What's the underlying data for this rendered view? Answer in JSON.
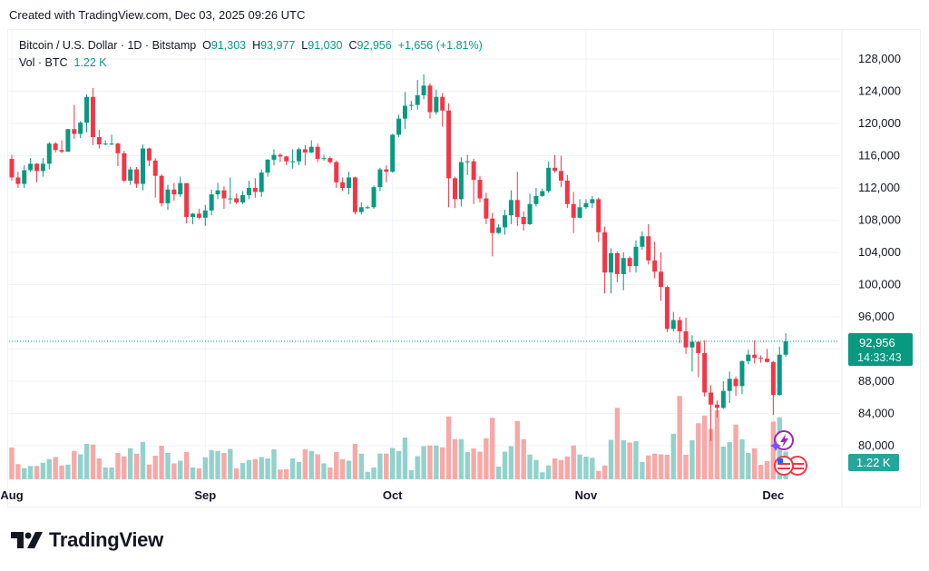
{
  "credit": "Created with TradingView.com, Dec 03, 2025 09:26 UTC",
  "legend": {
    "symbol": "Bitcoin / U.S. Dollar · 1D · Bitstamp",
    "o_label": "O",
    "o": "91,303",
    "h_label": "H",
    "h": "93,977",
    "l_label": "L",
    "l": "91,030",
    "c_label": "C",
    "c": "92,956",
    "change": "+1,656 (+1.81%)",
    "vol_label": "Vol · BTC",
    "vol": "1.22 K"
  },
  "price_badge": {
    "price": "92,956",
    "countdown": "14:33:43"
  },
  "volume_badge": "1.22 K",
  "logo_text": "TradingView",
  "colors": {
    "up": "#089981",
    "down": "#f23645",
    "vol_up": "#92d2cc",
    "vol_down": "#f7a9a7",
    "grid": "#f0f3fa",
    "badge_vol": "#26a69a"
  },
  "event_icons": [
    "lightning-event-icon",
    "us-flag-event-icon",
    "us-flag-event-icon"
  ],
  "chart_data": {
    "type": "candlestick",
    "title": "Bitcoin / U.S. Dollar · 1D · Bitstamp",
    "ylim": [
      78000,
      130000
    ],
    "y_ticks": [
      80000,
      84000,
      88000,
      92000,
      96000,
      100000,
      104000,
      108000,
      112000,
      116000,
      120000,
      124000,
      128000
    ],
    "y_tick_labels": [
      "80,000",
      "84,000",
      "88,000",
      "",
      "96,000",
      "100,000",
      "104,000",
      "108,000",
      "112,000",
      "116,000",
      "120,000",
      "124,000",
      "128,000"
    ],
    "x_ticks": [
      {
        "label": "Aug",
        "date": "2025-08-01"
      },
      {
        "label": "Sep",
        "date": "2025-09-01"
      },
      {
        "label": "Oct",
        "date": "2025-10-01"
      },
      {
        "label": "Nov",
        "date": "2025-11-01"
      },
      {
        "label": "Dec",
        "date": "2025-12-01"
      }
    ],
    "last_price": 92956,
    "grid": true,
    "columns": [
      "date",
      "open",
      "high",
      "low",
      "close",
      "volume_btc"
    ],
    "candles": [
      [
        "2025-08-01",
        115600,
        116100,
        112900,
        113300,
        1400
      ],
      [
        "2025-08-02",
        113300,
        114000,
        112000,
        112500,
        670
      ],
      [
        "2025-08-03",
        112500,
        114800,
        112000,
        114200,
        490
      ],
      [
        "2025-08-04",
        114200,
        115700,
        114000,
        115000,
        590
      ],
      [
        "2025-08-05",
        115000,
        115100,
        112700,
        114100,
        590
      ],
      [
        "2025-08-06",
        114100,
        115700,
        113400,
        115000,
        730
      ],
      [
        "2025-08-07",
        115000,
        117700,
        114300,
        117500,
        890
      ],
      [
        "2025-08-08",
        117500,
        117700,
        116400,
        116700,
        980
      ],
      [
        "2025-08-09",
        116700,
        117900,
        116300,
        116500,
        610
      ],
      [
        "2025-08-10",
        116500,
        119300,
        116500,
        119300,
        650
      ],
      [
        "2025-08-11",
        119300,
        122300,
        118100,
        118700,
        1250
      ],
      [
        "2025-08-12",
        118700,
        120300,
        118200,
        120100,
        1100
      ],
      [
        "2025-08-13",
        120100,
        123600,
        118900,
        123300,
        1560
      ],
      [
        "2025-08-14",
        123300,
        124400,
        117300,
        118300,
        1530
      ],
      [
        "2025-08-15",
        118300,
        119200,
        116900,
        117400,
        920
      ],
      [
        "2025-08-16",
        117400,
        117900,
        117300,
        117500,
        520
      ],
      [
        "2025-08-17",
        117500,
        118600,
        117300,
        117500,
        520
      ],
      [
        "2025-08-18",
        117500,
        117600,
        114700,
        116300,
        1160
      ],
      [
        "2025-08-19",
        116300,
        116600,
        112700,
        112900,
        1010
      ],
      [
        "2025-08-20",
        112900,
        114600,
        112400,
        114300,
        1370
      ],
      [
        "2025-08-21",
        114300,
        114600,
        112000,
        112500,
        1130
      ],
      [
        "2025-08-22",
        112500,
        117400,
        111700,
        116900,
        1650
      ],
      [
        "2025-08-23",
        116900,
        117000,
        114700,
        115400,
        650
      ],
      [
        "2025-08-24",
        115400,
        115700,
        110800,
        113500,
        1040
      ],
      [
        "2025-08-25",
        113500,
        113700,
        109700,
        110100,
        1480
      ],
      [
        "2025-08-26",
        110100,
        112400,
        109300,
        111800,
        1160
      ],
      [
        "2025-08-27",
        111800,
        112600,
        110400,
        111200,
        700
      ],
      [
        "2025-08-28",
        111200,
        113400,
        110900,
        112600,
        820
      ],
      [
        "2025-08-29",
        112600,
        112600,
        107600,
        108400,
        1200
      ],
      [
        "2025-08-30",
        108400,
        108900,
        107500,
        108800,
        520
      ],
      [
        "2025-08-31",
        108800,
        109400,
        108100,
        108300,
        490
      ],
      [
        "2025-09-01",
        108300,
        109900,
        107300,
        109200,
        970
      ],
      [
        "2025-09-02",
        109200,
        111800,
        108600,
        111200,
        1290
      ],
      [
        "2025-09-03",
        111200,
        112600,
        110600,
        111700,
        1250
      ],
      [
        "2025-09-04",
        111700,
        112200,
        109400,
        110700,
        1160
      ],
      [
        "2025-09-05",
        110700,
        113300,
        110000,
        110700,
        1340
      ],
      [
        "2025-09-06",
        110700,
        111300,
        110000,
        110200,
        490
      ],
      [
        "2025-09-07",
        110200,
        111600,
        110000,
        111100,
        720
      ],
      [
        "2025-09-08",
        111100,
        112900,
        110600,
        112000,
        850
      ],
      [
        "2025-09-09",
        112000,
        113200,
        110800,
        111500,
        890
      ],
      [
        "2025-09-10",
        111500,
        114300,
        110900,
        113900,
        980
      ],
      [
        "2025-09-11",
        113900,
        115600,
        113400,
        115500,
        920
      ],
      [
        "2025-09-12",
        115500,
        116800,
        114800,
        116100,
        1320
      ],
      [
        "2025-09-13",
        116100,
        116300,
        115200,
        115900,
        430
      ],
      [
        "2025-09-14",
        115900,
        116000,
        114800,
        115300,
        450
      ],
      [
        "2025-09-15",
        115300,
        116800,
        114400,
        115300,
        920
      ],
      [
        "2025-09-16",
        115300,
        117000,
        114800,
        116800,
        760
      ],
      [
        "2025-09-17",
        116800,
        117300,
        114800,
        116400,
        1320
      ],
      [
        "2025-09-18",
        116400,
        117900,
        116300,
        117100,
        1250
      ],
      [
        "2025-09-19",
        117100,
        117500,
        115200,
        115600,
        1100
      ],
      [
        "2025-09-20",
        115600,
        116100,
        115400,
        115700,
        700
      ],
      [
        "2025-09-21",
        115700,
        115900,
        115000,
        115200,
        520
      ],
      [
        "2025-09-22",
        115200,
        115400,
        112000,
        112700,
        1200
      ],
      [
        "2025-09-23",
        112700,
        113300,
        111600,
        112000,
        890
      ],
      [
        "2025-09-24",
        112000,
        114000,
        111200,
        113300,
        820
      ],
      [
        "2025-09-25",
        113300,
        113400,
        108700,
        109000,
        1560
      ],
      [
        "2025-09-26",
        109000,
        110200,
        108700,
        109600,
        1130
      ],
      [
        "2025-09-27",
        109600,
        109800,
        109400,
        109600,
        330
      ],
      [
        "2025-09-28",
        109600,
        112300,
        109400,
        112100,
        520
      ],
      [
        "2025-09-29",
        112100,
        114500,
        111600,
        114300,
        1130
      ],
      [
        "2025-09-30",
        114300,
        114800,
        112700,
        114000,
        1130
      ],
      [
        "2025-10-01",
        114000,
        118700,
        113900,
        118600,
        1380
      ],
      [
        "2025-10-02",
        118600,
        121100,
        118300,
        120600,
        1250
      ],
      [
        "2025-10-03",
        120600,
        123900,
        119300,
        122200,
        1840
      ],
      [
        "2025-10-04",
        122200,
        122800,
        121700,
        122300,
        400
      ],
      [
        "2025-10-05",
        122300,
        125400,
        121700,
        123500,
        1020
      ],
      [
        "2025-10-06",
        123500,
        126100,
        123000,
        124700,
        1460
      ],
      [
        "2025-10-07",
        124700,
        125000,
        120600,
        121400,
        1490
      ],
      [
        "2025-10-08",
        121400,
        124200,
        121100,
        123300,
        1490
      ],
      [
        "2025-10-09",
        123300,
        123800,
        119600,
        121600,
        1410
      ],
      [
        "2025-10-10",
        121600,
        122500,
        109600,
        113200,
        2770
      ],
      [
        "2025-10-11",
        113200,
        113400,
        109500,
        110600,
        1770
      ],
      [
        "2025-10-12",
        110600,
        115800,
        109700,
        115200,
        1770
      ],
      [
        "2025-10-13",
        115200,
        116100,
        113600,
        115300,
        1200
      ],
      [
        "2025-10-14",
        115300,
        115600,
        110000,
        113000,
        1360
      ],
      [
        "2025-10-15",
        113000,
        113500,
        110200,
        110700,
        1220
      ],
      [
        "2025-10-16",
        110700,
        111400,
        107500,
        108200,
        1810
      ],
      [
        "2025-10-17",
        108200,
        108900,
        103500,
        106400,
        2710
      ],
      [
        "2025-10-18",
        106400,
        107500,
        106300,
        107100,
        560
      ],
      [
        "2025-10-19",
        107100,
        109300,
        106200,
        108600,
        1220
      ],
      [
        "2025-10-20",
        108600,
        111700,
        107500,
        110500,
        1460
      ],
      [
        "2025-10-21",
        110500,
        114000,
        107300,
        108400,
        2570
      ],
      [
        "2025-10-22",
        108400,
        109100,
        106700,
        107500,
        1770
      ],
      [
        "2025-10-23",
        107500,
        111300,
        107400,
        110000,
        1090
      ],
      [
        "2025-10-24",
        110000,
        112000,
        109700,
        111000,
        850
      ],
      [
        "2025-10-25",
        111000,
        111900,
        110900,
        111600,
        310
      ],
      [
        "2025-10-26",
        111600,
        115300,
        111400,
        114500,
        610
      ],
      [
        "2025-10-27",
        114500,
        116100,
        113900,
        114100,
        920
      ],
      [
        "2025-10-28",
        114100,
        116000,
        112100,
        112900,
        850
      ],
      [
        "2025-10-29",
        112900,
        113600,
        109500,
        110000,
        1010
      ],
      [
        "2025-10-30",
        110000,
        111500,
        106400,
        108300,
        1490
      ],
      [
        "2025-10-31",
        108300,
        110600,
        108200,
        109600,
        1090
      ],
      [
        "2025-11-01",
        109600,
        110600,
        109400,
        110100,
        1000
      ],
      [
        "2025-11-02",
        110100,
        111000,
        109500,
        110600,
        950
      ],
      [
        "2025-11-03",
        110600,
        110800,
        105300,
        106500,
        370
      ],
      [
        "2025-11-04",
        106500,
        107200,
        98900,
        101500,
        610
      ],
      [
        "2025-11-05",
        101500,
        104500,
        98900,
        103900,
        1740
      ],
      [
        "2025-11-06",
        103900,
        104100,
        100300,
        101300,
        3150
      ],
      [
        "2025-11-07",
        101300,
        104000,
        99300,
        103300,
        1720
      ],
      [
        "2025-11-08",
        103300,
        103500,
        101500,
        102300,
        1620
      ],
      [
        "2025-11-09",
        102300,
        105500,
        101500,
        104700,
        1680
      ],
      [
        "2025-11-10",
        104700,
        106600,
        104300,
        106000,
        760
      ],
      [
        "2025-11-11",
        106000,
        107500,
        102500,
        103000,
        1050
      ],
      [
        "2025-11-12",
        103000,
        105300,
        100800,
        101600,
        1130
      ],
      [
        "2025-11-13",
        101600,
        104000,
        98000,
        99700,
        1100
      ],
      [
        "2025-11-14",
        99700,
        99900,
        94100,
        94500,
        1080
      ],
      [
        "2025-11-15",
        94500,
        96600,
        94200,
        95600,
        2010
      ],
      [
        "2025-11-16",
        95600,
        96000,
        92700,
        94200,
        3670
      ],
      [
        "2025-11-17",
        94200,
        95900,
        91400,
        92200,
        1080
      ],
      [
        "2025-11-18",
        92200,
        93700,
        89200,
        92900,
        1720
      ],
      [
        "2025-11-19",
        92900,
        92900,
        88500,
        91500,
        2470
      ],
      [
        "2025-11-20",
        91500,
        93100,
        86100,
        86600,
        2810
      ],
      [
        "2025-11-21",
        86600,
        87500,
        80600,
        85100,
        2220
      ],
      [
        "2025-11-22",
        85100,
        85600,
        83500,
        84700,
        3050
      ],
      [
        "2025-11-23",
        84700,
        88000,
        84600,
        86800,
        1440
      ],
      [
        "2025-11-24",
        86800,
        89200,
        85300,
        88300,
        1640
      ],
      [
        "2025-11-25",
        88300,
        88600,
        86200,
        87400,
        2410
      ],
      [
        "2025-11-26",
        87400,
        90600,
        86400,
        90500,
        1770
      ],
      [
        "2025-11-27",
        90500,
        91900,
        90100,
        91300,
        1160
      ],
      [
        "2025-11-28",
        91300,
        93100,
        90200,
        90900,
        1370
      ],
      [
        "2025-11-29",
        90900,
        91200,
        90300,
        90800,
        640
      ],
      [
        "2025-11-30",
        90800,
        92000,
        90300,
        90400,
        800
      ],
      [
        "2025-12-01",
        90400,
        90500,
        83800,
        86300,
        2540
      ],
      [
        "2025-12-02",
        86300,
        92300,
        86200,
        91300,
        2730
      ],
      [
        "2025-12-03",
        91303,
        93977,
        91030,
        92956,
        1220
      ]
    ]
  }
}
